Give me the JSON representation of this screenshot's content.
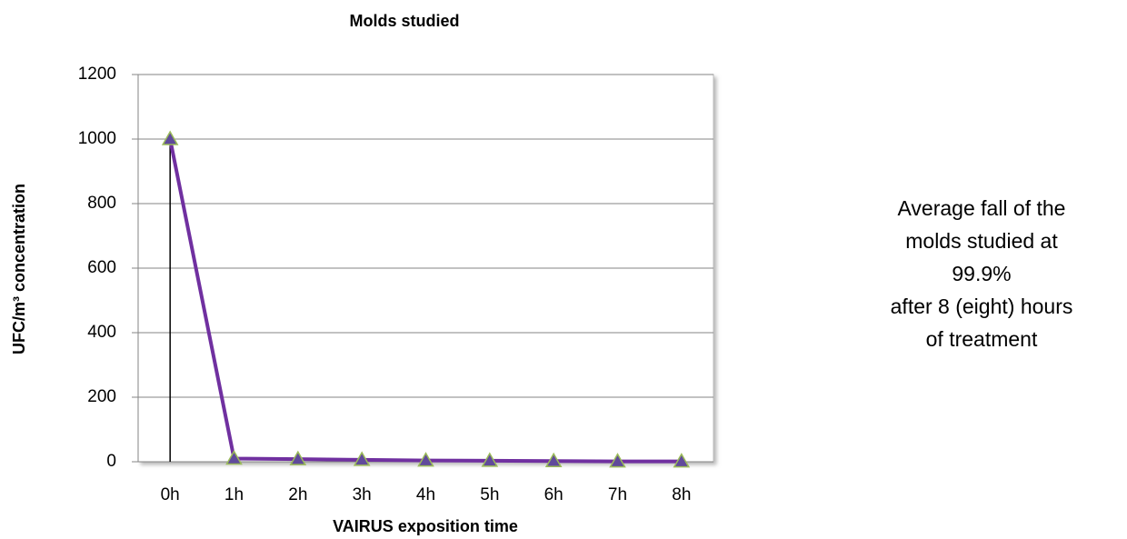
{
  "chart_data": {
    "type": "line",
    "title": "Molds studied",
    "xlabel": "VAIRUS exposition time",
    "ylabel": "UFC/m³ concentration",
    "categories": [
      "0h",
      "1h",
      "2h",
      "3h",
      "4h",
      "5h",
      "6h",
      "7h",
      "8h"
    ],
    "series": [
      {
        "name": "Molds studied",
        "color": "#7030a0",
        "values": [
          1000,
          10,
          8,
          6,
          4,
          3,
          2,
          1,
          1
        ]
      }
    ],
    "ylim": [
      0,
      1200
    ],
    "yticks": [
      0,
      200,
      400,
      600,
      800,
      1000,
      1200
    ],
    "grid": true,
    "annotation": [
      "Average fall of the",
      "molds studied at",
      "99.9%",
      "after 8 (eight) hours",
      "of treatment"
    ]
  }
}
